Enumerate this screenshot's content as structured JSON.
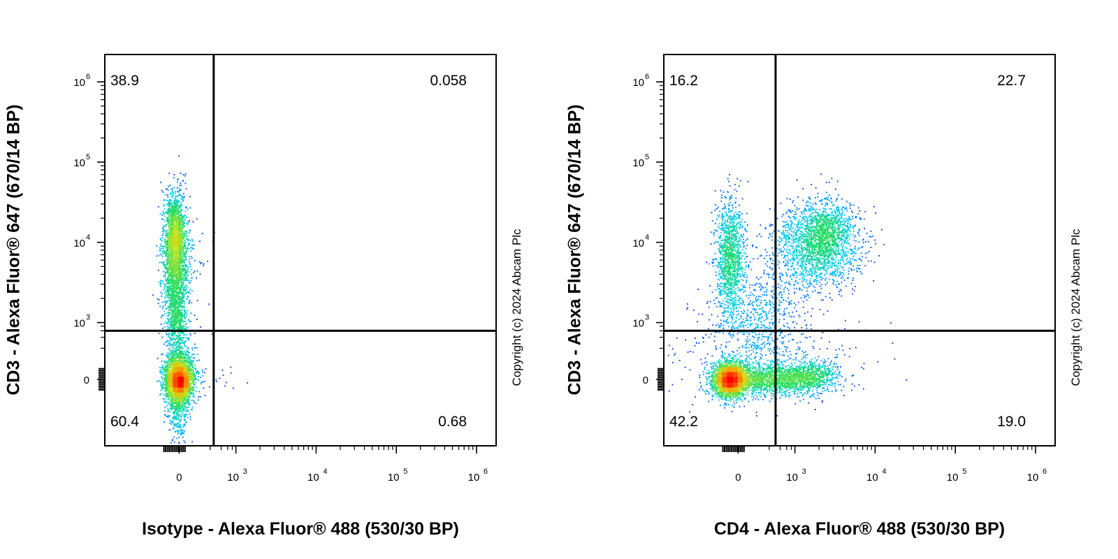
{
  "chart_data": [
    {
      "type": "scatter",
      "subtype": "flow-cytometry-density-quadrant",
      "xlabel": "Isotype - Alexa Fluor® 488 (530/30 BP)",
      "ylabel": "CD3 - Alexa Fluor® 647 (670/14 BP)",
      "x_scale": "biexponential",
      "y_scale": "biexponential",
      "x_ticks": [
        {
          "base": "0",
          "exp": ""
        },
        {
          "base": "10",
          "exp": "3"
        },
        {
          "base": "10",
          "exp": "4"
        },
        {
          "base": "10",
          "exp": "5"
        },
        {
          "base": "10",
          "exp": "6"
        }
      ],
      "y_ticks": [
        {
          "base": "0",
          "exp": ""
        },
        {
          "base": "10",
          "exp": "3"
        },
        {
          "base": "10",
          "exp": "4"
        },
        {
          "base": "10",
          "exp": "5"
        },
        {
          "base": "10",
          "exp": "6"
        }
      ],
      "quadrants": {
        "ul": "38.9",
        "ur": "0.058",
        "ll": "60.4",
        "lr": "0.68"
      },
      "gate": {
        "x": 250,
        "y": 600
      },
      "copyright": "Copyright (c) 2024 Abcam Plc",
      "colormap": [
        "#1515e8",
        "#00c8ff",
        "#1edc64",
        "#c8e61e",
        "#ff9600",
        "#ff0000"
      ]
    },
    {
      "type": "scatter",
      "subtype": "flow-cytometry-density-quadrant",
      "xlabel": "CD4 - Alexa Fluor® 488 (530/30 BP)",
      "ylabel": "CD3 - Alexa Fluor® 647 (670/14 BP)",
      "x_scale": "biexponential",
      "y_scale": "biexponential",
      "x_ticks": [
        {
          "base": "0",
          "exp": ""
        },
        {
          "base": "10",
          "exp": "3"
        },
        {
          "base": "10",
          "exp": "4"
        },
        {
          "base": "10",
          "exp": "5"
        },
        {
          "base": "10",
          "exp": "6"
        }
      ],
      "y_ticks": [
        {
          "base": "0",
          "exp": ""
        },
        {
          "base": "10",
          "exp": "3"
        },
        {
          "base": "10",
          "exp": "4"
        },
        {
          "base": "10",
          "exp": "5"
        },
        {
          "base": "10",
          "exp": "6"
        }
      ],
      "quadrants": {
        "ul": "16.2",
        "ur": "22.7",
        "ll": "42.2",
        "lr": "19.0"
      },
      "gate": {
        "x": 300,
        "y": 600
      },
      "copyright": "Copyright (c) 2024 Abcam Plc",
      "colormap": [
        "#1515e8",
        "#00c8ff",
        "#1edc64",
        "#c8e61e",
        "#ff9600",
        "#ff0000"
      ]
    }
  ]
}
